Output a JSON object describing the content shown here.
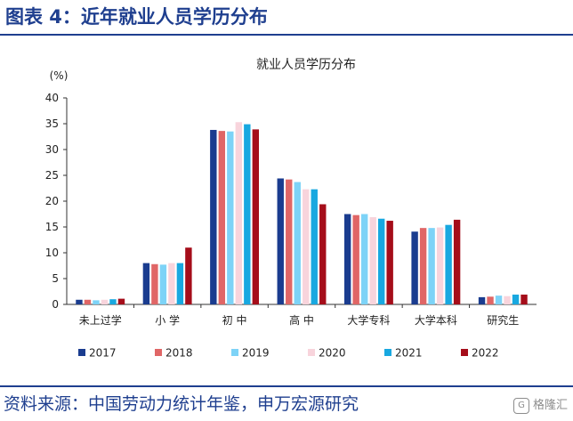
{
  "header": {
    "title": "图表 4：近年就业人员学历分布"
  },
  "footer": {
    "source": "资料来源：中国劳动力统计年鉴，申万宏源研究",
    "watermark": "格隆汇",
    "watermark_logo": "G"
  },
  "chart_data": {
    "type": "bar",
    "title": "就业人员学历分布",
    "ylabel": "(%)",
    "xlabel": "",
    "ylim": [
      0,
      40
    ],
    "yticks": [
      0,
      5,
      10,
      15,
      20,
      25,
      30,
      35,
      40
    ],
    "grid": false,
    "legend_position": "bottom",
    "categories": [
      "未上过学",
      "小 学",
      "初 中",
      "高 中",
      "大学专科",
      "大学本科",
      "研究生"
    ],
    "series": [
      {
        "name": "2017",
        "color": "#1a3c8f",
        "values": [
          0.9,
          8.0,
          33.8,
          24.4,
          17.5,
          14.1,
          1.4
        ]
      },
      {
        "name": "2018",
        "color": "#e06666",
        "values": [
          0.9,
          7.8,
          33.6,
          24.2,
          17.3,
          14.8,
          1.5
        ]
      },
      {
        "name": "2019",
        "color": "#7dd3f7",
        "values": [
          0.8,
          7.7,
          33.5,
          23.7,
          17.5,
          14.8,
          1.7
        ]
      },
      {
        "name": "2020",
        "color": "#f8d4dc",
        "values": [
          0.9,
          8.0,
          35.3,
          22.3,
          16.9,
          14.9,
          1.6
        ]
      },
      {
        "name": "2021",
        "color": "#18a8e0",
        "values": [
          1.0,
          8.0,
          34.9,
          22.3,
          16.6,
          15.4,
          1.9
        ]
      },
      {
        "name": "2022",
        "color": "#a50d1a",
        "values": [
          1.1,
          11.0,
          33.9,
          19.4,
          16.2,
          16.4,
          1.9
        ]
      }
    ]
  }
}
